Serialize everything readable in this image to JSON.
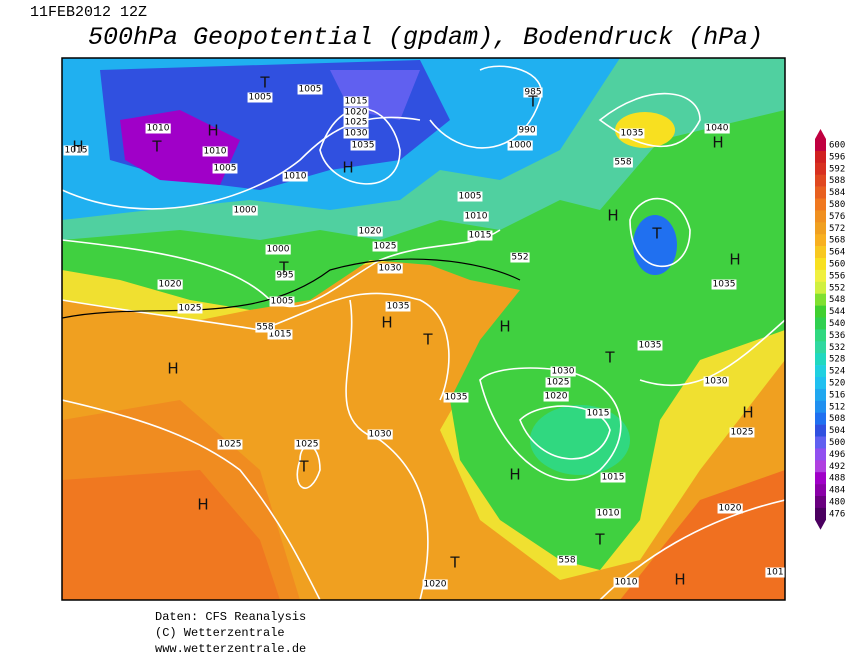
{
  "header": {
    "date": "11FEB2012 12Z",
    "title": "500hPa Geopotential (gpdam), Bodendruck (hPa)"
  },
  "colorbar": {
    "values": [
      600,
      596,
      592,
      588,
      584,
      580,
      576,
      572,
      568,
      564,
      560,
      556,
      552,
      548,
      544,
      540,
      536,
      532,
      528,
      524,
      520,
      516,
      512,
      508,
      504,
      500,
      496,
      492,
      488,
      484,
      480,
      476
    ],
    "colors": [
      "#c00040",
      "#d02020",
      "#d83020",
      "#e04820",
      "#e86020",
      "#f07820",
      "#f09020",
      "#f0a020",
      "#f8b020",
      "#f8c820",
      "#f8e020",
      "#f0f040",
      "#d0f040",
      "#80e030",
      "#40d030",
      "#30d050",
      "#30d880",
      "#30d8a0",
      "#20d8c0",
      "#20d0e0",
      "#20c0f0",
      "#20a8f0",
      "#2090f0",
      "#2070f0",
      "#3050e0",
      "#6060f0",
      "#9050f0",
      "#b040e0",
      "#a000c8",
      "#8a00a8",
      "#6a0080",
      "#4b0060"
    ]
  },
  "map": {
    "isobar_labels": [
      "1005",
      "1005",
      "1010",
      "1010",
      "1005",
      "1000",
      "1015",
      "1020",
      "1025",
      "1030",
      "1035",
      "1010",
      "985",
      "990",
      "1000",
      "1035",
      "1040",
      "1005",
      "1010",
      "1015",
      "1020",
      "1025",
      "1030",
      "552",
      "1000",
      "995",
      "1005",
      "1020",
      "1025",
      "1015",
      "558",
      "1035",
      "1035",
      "1030",
      "1025",
      "1020",
      "1015",
      "1035",
      "1035",
      "1030",
      "1025",
      "1025",
      "1025",
      "1030",
      "1015",
      "1010",
      "1020",
      "1010",
      "1020",
      "1015",
      "558",
      "558",
      "101"
    ],
    "centers": [
      "T",
      "H",
      "T",
      "H",
      "H",
      "T",
      "T",
      "H",
      "T",
      "H",
      "H",
      "H",
      "T",
      "H",
      "H",
      "T",
      "H",
      "T",
      "H",
      "H",
      "T",
      "H",
      "T"
    ]
  },
  "footer": {
    "lines": [
      "Daten: CFS Reanalysis",
      "(C) Wetterzentrale",
      "www.wetterzentrale.de"
    ]
  }
}
